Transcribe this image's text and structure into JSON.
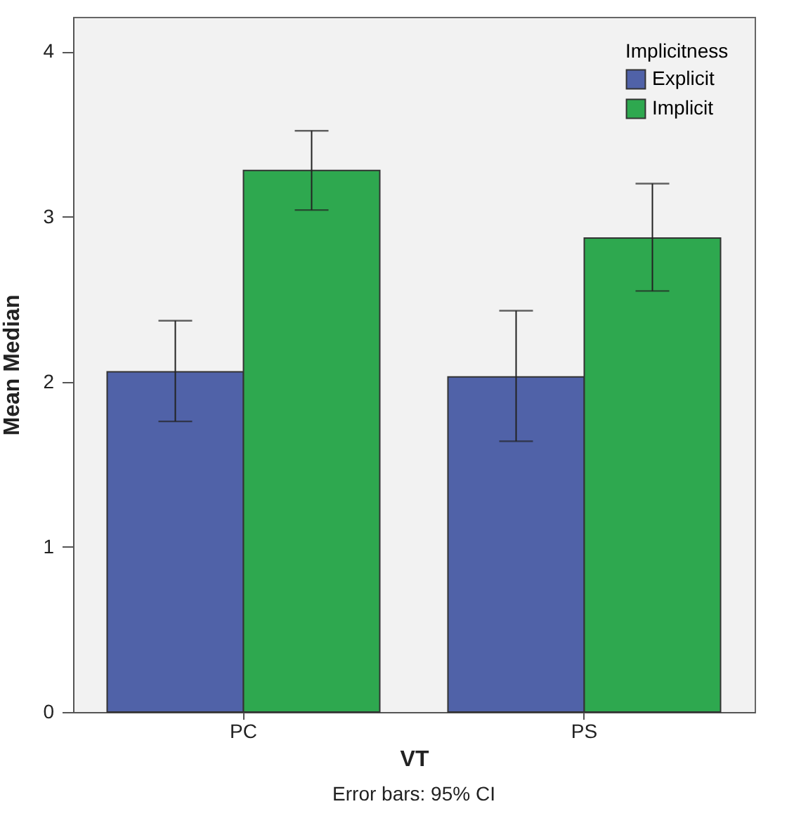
{
  "chart_data": {
    "type": "bar",
    "categories": [
      "PC",
      "PS"
    ],
    "series": [
      {
        "name": "Explicit",
        "color": "#5062a8",
        "values": [
          2.06,
          2.03
        ],
        "errors": [
          [
            1.76,
            2.37
          ],
          [
            1.64,
            2.43
          ]
        ]
      },
      {
        "name": "Implicit",
        "color": "#2ea84f",
        "values": [
          3.28,
          2.87
        ],
        "errors": [
          [
            3.04,
            3.52
          ],
          [
            2.55,
            3.2
          ]
        ]
      }
    ],
    "xlabel": "VT",
    "ylabel": "Mean Median",
    "legend_title": "Implicitness",
    "legend": "top right",
    "ylim": [
      0,
      4.21
    ],
    "yticks": [
      0,
      1,
      2,
      3,
      4
    ],
    "grid": false,
    "annotations": [
      "Error bars: 95% CI"
    ]
  }
}
